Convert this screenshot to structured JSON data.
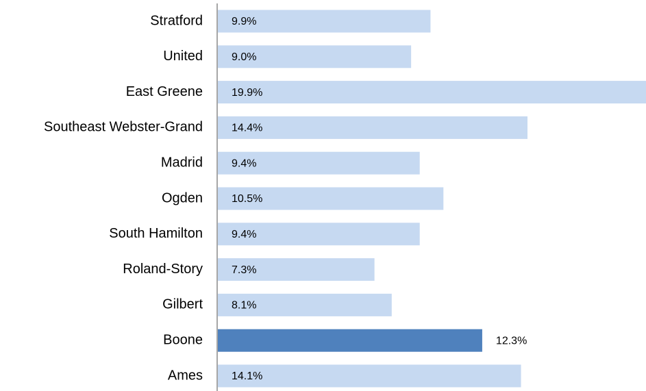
{
  "chart_data": {
    "type": "barh",
    "categories": [
      "Stratford",
      "United",
      "East Greene",
      "Southeast Webster-Grand",
      "Madrid",
      "Ogden",
      "South Hamilton",
      "Roland-Story",
      "Gilbert",
      "Boone",
      "Ames"
    ],
    "values": [
      9.9,
      9.0,
      19.9,
      14.4,
      9.4,
      10.5,
      9.4,
      7.3,
      8.1,
      12.3,
      14.1
    ],
    "value_labels": [
      "9.9%",
      "9.0%",
      "19.9%",
      "14.4%",
      "9.4%",
      "10.5%",
      "9.4%",
      "7.3%",
      "8.1%",
      "12.3%",
      "14.1%"
    ],
    "colors": [
      "#c6d9f1",
      "#c6d9f1",
      "#c6d9f1",
      "#c6d9f1",
      "#c6d9f1",
      "#c6d9f1",
      "#c6d9f1",
      "#c6d9f1",
      "#c6d9f1",
      "#4f81bd",
      "#c6d9f1"
    ],
    "label_positions": [
      "inside",
      "inside",
      "inside",
      "inside",
      "inside",
      "inside",
      "inside",
      "inside",
      "inside",
      "outside",
      "inside"
    ]
  }
}
